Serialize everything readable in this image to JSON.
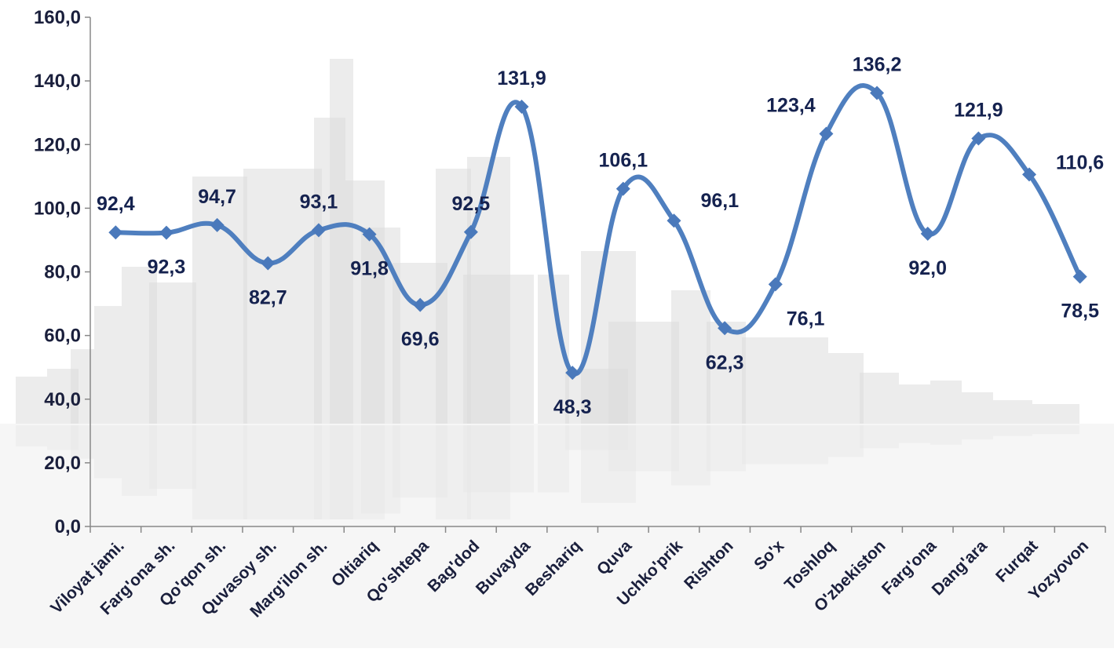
{
  "colors": {
    "line": "#4f7fbf",
    "marker": "#4a79bb",
    "text": "#1a1f3c",
    "axis": "#888888"
  },
  "chart_data": {
    "type": "line",
    "categories": [
      "Viloyat jami.",
      "Farg'ona sh.",
      "Qo'qon sh.",
      "Quvasoy sh.",
      "Marg'ilon sh.",
      "Oltiariq",
      "Qo'shtepa",
      "Bag'dod",
      "Buvayda",
      "Beshariq",
      "Quva",
      "Uchko'prik",
      "Rishton",
      "So'x",
      "Toshloq",
      "O'zbekiston",
      "Farg'ona",
      "Dang'ara",
      "Furqat",
      "Yozyovon"
    ],
    "series": [
      {
        "values": [
          92.4,
          92.3,
          94.7,
          82.7,
          93.1,
          91.8,
          69.6,
          92.5,
          131.9,
          48.3,
          106.1,
          96.1,
          62.3,
          76.1,
          123.4,
          136.2,
          92.0,
          121.9,
          110.6,
          78.5
        ]
      }
    ],
    "data_labels": [
      "92,4",
      "92,3",
      "94,7",
      "82,7",
      "93,1",
      "91,8",
      "69,6",
      "92,5",
      "131,9",
      "48,3",
      "106,1",
      "96,1",
      "62,3",
      "76,1",
      "123,4",
      "136,2",
      "92,0",
      "121,9",
      "110,6",
      "78,5"
    ],
    "yticks": [
      "0,0",
      "20,0",
      "40,0",
      "60,0",
      "80,0",
      "100,0",
      "120,0",
      "140,0",
      "160,0"
    ],
    "ylim": [
      0,
      160
    ],
    "smooth": true,
    "grid": false,
    "legend": "none",
    "title": "",
    "xlabel": "",
    "ylabel": ""
  }
}
